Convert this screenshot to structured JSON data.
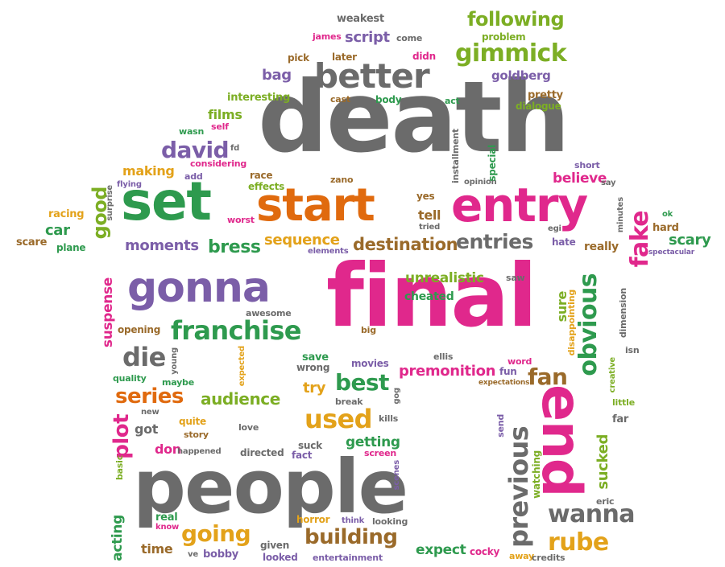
{
  "palette": {
    "gray": "#6b6b6b",
    "orange": "#e06a0e",
    "green": "#2e9a4e",
    "purple": "#7b5ea8",
    "magenta": "#e0288c",
    "yellow": "#e3a21a",
    "olive": "#7cae24",
    "brown": "#9a6a2a"
  },
  "words": [
    {
      "text": "death",
      "color": "gray"
    },
    {
      "text": "final",
      "color": "magenta"
    },
    {
      "text": "people",
      "color": "gray"
    },
    {
      "text": "end",
      "color": "magenta"
    },
    {
      "text": "set",
      "color": "green"
    },
    {
      "text": "start",
      "color": "orange"
    },
    {
      "text": "entry",
      "color": "magenta"
    },
    {
      "text": "gonna",
      "color": "purple"
    },
    {
      "text": "better",
      "color": "gray"
    },
    {
      "text": "franchise",
      "color": "green"
    },
    {
      "text": "gimmick",
      "color": "olive"
    },
    {
      "text": "following",
      "color": "olive"
    },
    {
      "text": "obvious",
      "color": "green"
    },
    {
      "text": "previous",
      "color": "gray"
    },
    {
      "text": "destination",
      "color": "brown"
    },
    {
      "text": "entries",
      "color": "gray"
    },
    {
      "text": "building",
      "color": "brown"
    },
    {
      "text": "going",
      "color": "yellow"
    },
    {
      "text": "series",
      "color": "orange"
    },
    {
      "text": "die",
      "color": "gray"
    },
    {
      "text": "best",
      "color": "green"
    },
    {
      "text": "used",
      "color": "yellow"
    },
    {
      "text": "wanna",
      "color": "gray"
    },
    {
      "text": "rube",
      "color": "yellow"
    },
    {
      "text": "plot",
      "color": "magenta"
    },
    {
      "text": "fan",
      "color": "brown"
    },
    {
      "text": "premonition",
      "color": "magenta"
    },
    {
      "text": "david",
      "color": "purple"
    },
    {
      "text": "fake",
      "color": "magenta"
    },
    {
      "text": "good",
      "color": "olive"
    },
    {
      "text": "audience",
      "color": "olive"
    },
    {
      "text": "moments",
      "color": "purple"
    },
    {
      "text": "bress",
      "color": "green"
    },
    {
      "text": "sequence",
      "color": "yellow"
    },
    {
      "text": "unrealistic",
      "color": "olive"
    },
    {
      "text": "script",
      "color": "purple"
    },
    {
      "text": "goldberg",
      "color": "purple"
    },
    {
      "text": "bag",
      "color": "purple"
    },
    {
      "text": "films",
      "color": "olive"
    },
    {
      "text": "making",
      "color": "yellow"
    },
    {
      "text": "believe",
      "color": "magenta"
    },
    {
      "text": "scary",
      "color": "green"
    },
    {
      "text": "car",
      "color": "green"
    },
    {
      "text": "acting",
      "color": "green"
    },
    {
      "text": "getting",
      "color": "green"
    },
    {
      "text": "expect",
      "color": "green"
    },
    {
      "text": "sucked",
      "color": "olive"
    },
    {
      "text": "suspense",
      "color": "magenta"
    },
    {
      "text": "tell",
      "color": "brown"
    },
    {
      "text": "try",
      "color": "yellow"
    },
    {
      "text": "time",
      "color": "brown"
    },
    {
      "text": "sure",
      "color": "olive"
    },
    {
      "text": "got",
      "color": "gray"
    },
    {
      "text": "don",
      "color": "magenta"
    },
    {
      "text": "cheated",
      "color": "green"
    },
    {
      "text": "weakest",
      "color": "gray"
    },
    {
      "text": "problem",
      "color": "olive"
    },
    {
      "text": "james",
      "color": "magenta"
    },
    {
      "text": "come",
      "color": "gray"
    },
    {
      "text": "pick",
      "color": "brown"
    },
    {
      "text": "later",
      "color": "brown"
    },
    {
      "text": "didn",
      "color": "magenta"
    },
    {
      "text": "interesting",
      "color": "olive"
    },
    {
      "text": "cast",
      "color": "brown"
    },
    {
      "text": "body",
      "color": "green"
    },
    {
      "text": "act",
      "color": "green"
    },
    {
      "text": "pretty",
      "color": "brown"
    },
    {
      "text": "dialogue",
      "color": "olive"
    },
    {
      "text": "wasn",
      "color": "green"
    },
    {
      "text": "self",
      "color": "magenta"
    },
    {
      "text": "fd",
      "color": "gray"
    },
    {
      "text": "considering",
      "color": "magenta"
    },
    {
      "text": "add",
      "color": "purple"
    },
    {
      "text": "race",
      "color": "brown"
    },
    {
      "text": "effects",
      "color": "olive"
    },
    {
      "text": "zano",
      "color": "brown"
    },
    {
      "text": "installment",
      "color": "gray"
    },
    {
      "text": "opinion",
      "color": "gray"
    },
    {
      "text": "special",
      "color": "green"
    },
    {
      "text": "short",
      "color": "purple"
    },
    {
      "text": "say",
      "color": "gray"
    },
    {
      "text": "minutes",
      "color": "gray"
    },
    {
      "text": "ok",
      "color": "green"
    },
    {
      "text": "hard",
      "color": "brown"
    },
    {
      "text": "spectacular",
      "color": "purple"
    },
    {
      "text": "flying",
      "color": "purple"
    },
    {
      "text": "surprise",
      "color": "gray"
    },
    {
      "text": "racing",
      "color": "yellow"
    },
    {
      "text": "scare",
      "color": "brown"
    },
    {
      "text": "plane",
      "color": "green"
    },
    {
      "text": "worst",
      "color": "magenta"
    },
    {
      "text": "yes",
      "color": "brown"
    },
    {
      "text": "tried",
      "color": "gray"
    },
    {
      "text": "elements",
      "color": "purple"
    },
    {
      "text": "egi",
      "color": "gray"
    },
    {
      "text": "hate",
      "color": "purple"
    },
    {
      "text": "really",
      "color": "brown"
    },
    {
      "text": "saw",
      "color": "gray"
    },
    {
      "text": "awesome",
      "color": "gray"
    },
    {
      "text": "opening",
      "color": "brown"
    },
    {
      "text": "big",
      "color": "brown"
    },
    {
      "text": "young",
      "color": "gray"
    },
    {
      "text": "expected",
      "color": "yellow"
    },
    {
      "text": "save",
      "color": "green"
    },
    {
      "text": "wrong",
      "color": "gray"
    },
    {
      "text": "movies",
      "color": "purple"
    },
    {
      "text": "ellis",
      "color": "gray"
    },
    {
      "text": "word",
      "color": "magenta"
    },
    {
      "text": "fun",
      "color": "purple"
    },
    {
      "text": "disappointing",
      "color": "yellow"
    },
    {
      "text": "dimension",
      "color": "gray"
    },
    {
      "text": "isn",
      "color": "gray"
    },
    {
      "text": "creative",
      "color": "olive"
    },
    {
      "text": "quality",
      "color": "green"
    },
    {
      "text": "maybe",
      "color": "green"
    },
    {
      "text": "expectations",
      "color": "brown"
    },
    {
      "text": "break",
      "color": "gray"
    },
    {
      "text": "gog",
      "color": "gray"
    },
    {
      "text": "little",
      "color": "olive"
    },
    {
      "text": "new",
      "color": "gray"
    },
    {
      "text": "quite",
      "color": "yellow"
    },
    {
      "text": "story",
      "color": "brown"
    },
    {
      "text": "love",
      "color": "gray"
    },
    {
      "text": "kills",
      "color": "gray"
    },
    {
      "text": "send",
      "color": "purple"
    },
    {
      "text": "far",
      "color": "gray"
    },
    {
      "text": "happened",
      "color": "gray"
    },
    {
      "text": "directed",
      "color": "gray"
    },
    {
      "text": "suck",
      "color": "gray"
    },
    {
      "text": "fact",
      "color": "purple"
    },
    {
      "text": "screen",
      "color": "magenta"
    },
    {
      "text": "watching",
      "color": "olive"
    },
    {
      "text": "eric",
      "color": "gray"
    },
    {
      "text": "basic",
      "color": "olive"
    },
    {
      "text": "scenes",
      "color": "purple"
    },
    {
      "text": "real",
      "color": "green"
    },
    {
      "text": "know",
      "color": "magenta"
    },
    {
      "text": "horror",
      "color": "yellow"
    },
    {
      "text": "think",
      "color": "purple"
    },
    {
      "text": "looking",
      "color": "gray"
    },
    {
      "text": "given",
      "color": "gray"
    },
    {
      "text": "ve",
      "color": "gray"
    },
    {
      "text": "bobby",
      "color": "purple"
    },
    {
      "text": "looked",
      "color": "purple"
    },
    {
      "text": "entertainment",
      "color": "purple"
    },
    {
      "text": "cocky",
      "color": "magenta"
    },
    {
      "text": "away",
      "color": "yellow"
    },
    {
      "text": "credits",
      "color": "gray"
    }
  ]
}
